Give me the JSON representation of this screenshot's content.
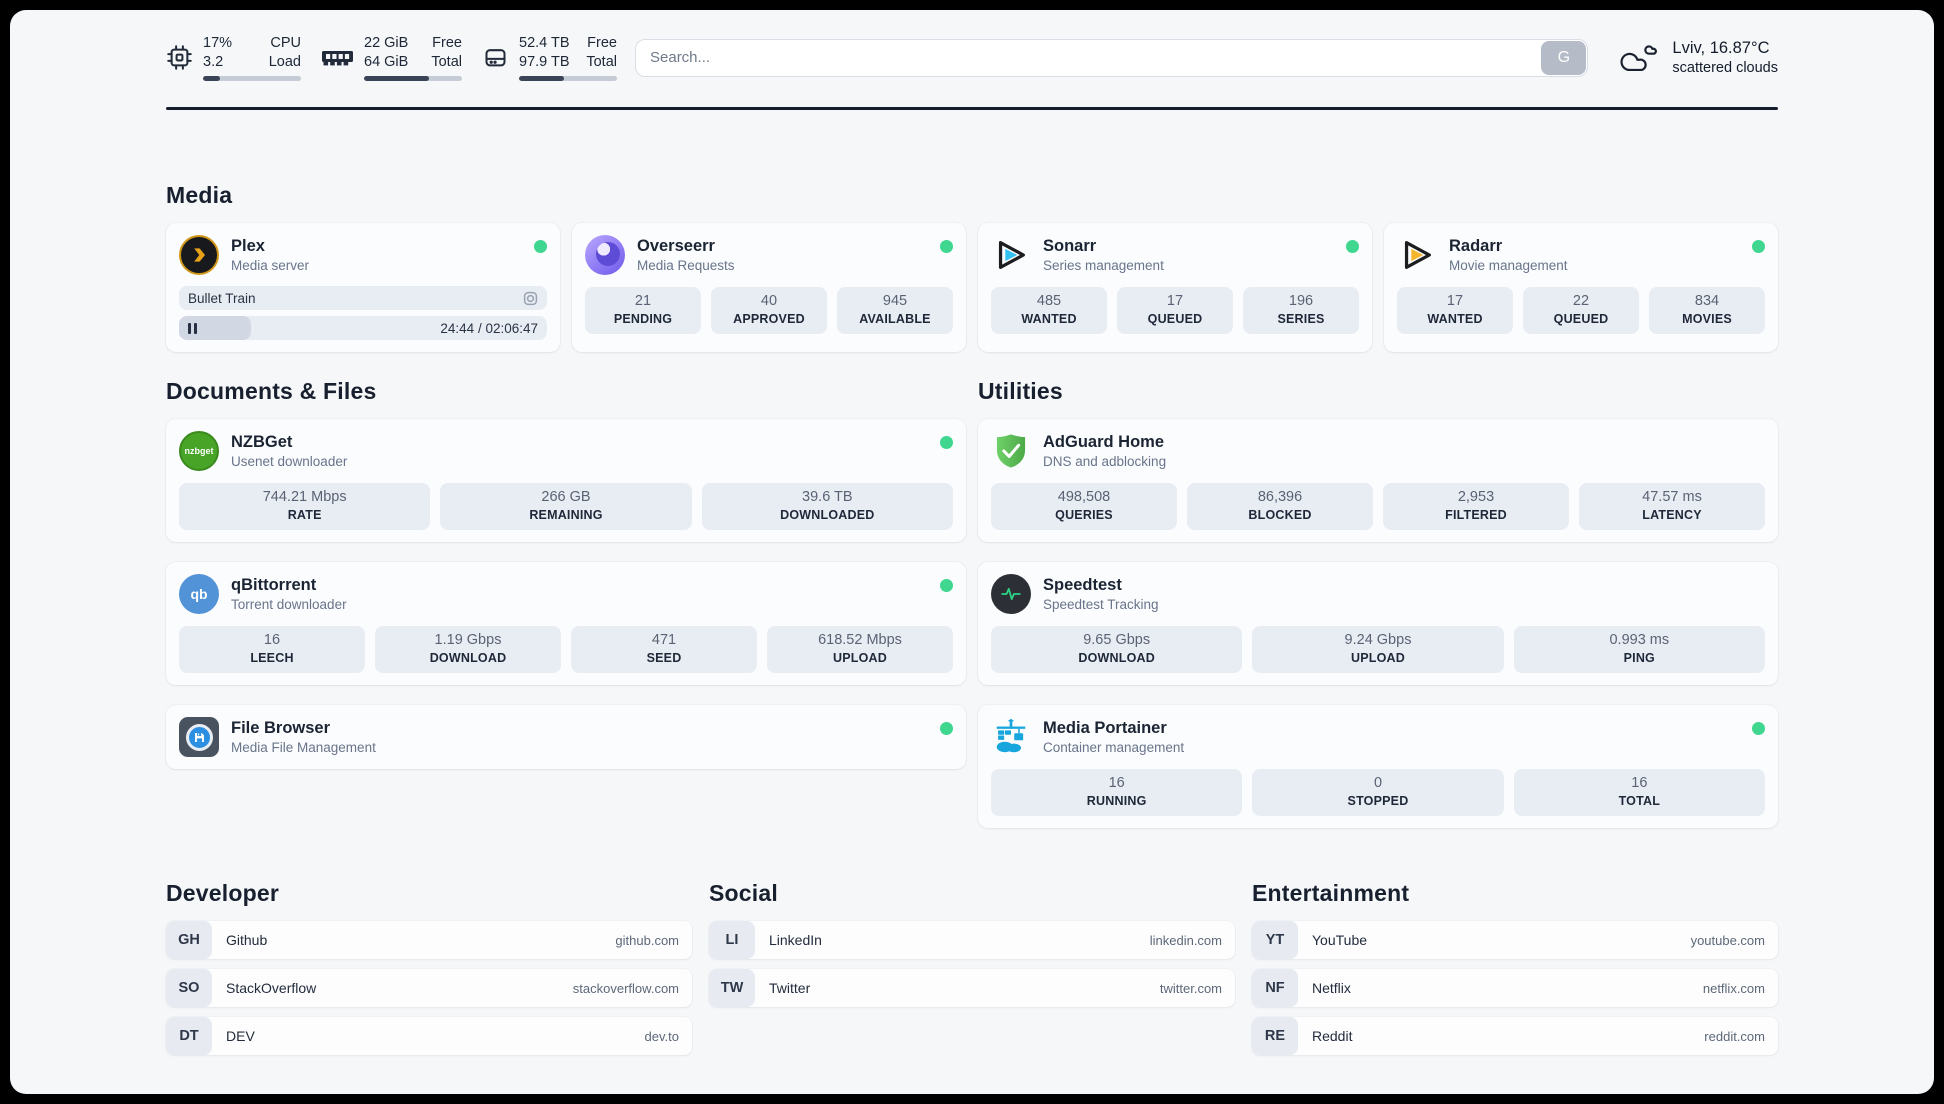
{
  "colors": {
    "status_green": "#3fd68f",
    "accent_dark": "#273043",
    "page_bg": "#f5f7f9",
    "stat_box_bg": "#e8edf4"
  },
  "topbar": {
    "resources": [
      {
        "icon": "cpu-icon",
        "value1": "17%",
        "label1": "CPU",
        "value2": "3.2",
        "label2": "Load",
        "progress": 17
      },
      {
        "icon": "memory-icon",
        "value1": "22 GiB",
        "label1": "Free",
        "value2": "64 GiB",
        "label2": "Total",
        "progress": 66
      },
      {
        "icon": "disk-icon",
        "value1": "52.4 TB",
        "label1": "Free",
        "value2": "97.9 TB",
        "label2": "Total",
        "progress": 46
      }
    ],
    "search": {
      "placeholder": "Search...",
      "button_label": "G"
    },
    "weather": {
      "location_temp": "Lviv, 16.87°C",
      "condition": "scattered clouds"
    }
  },
  "media": {
    "title": "Media",
    "cards": [
      {
        "title": "Plex",
        "subtitle": "Media server",
        "online": true,
        "now_playing": {
          "title": "Bullet Train",
          "time_display": "24:44 / 02:06:47",
          "progress_percent": 19.5
        }
      },
      {
        "title": "Overseerr",
        "subtitle": "Media Requests",
        "online": true,
        "stats": [
          {
            "value": "21",
            "label": "PENDING"
          },
          {
            "value": "40",
            "label": "APPROVED"
          },
          {
            "value": "945",
            "label": "AVAILABLE"
          }
        ]
      },
      {
        "title": "Sonarr",
        "subtitle": "Series management",
        "online": true,
        "stats": [
          {
            "value": "485",
            "label": "WANTED"
          },
          {
            "value": "17",
            "label": "QUEUED"
          },
          {
            "value": "196",
            "label": "SERIES"
          }
        ]
      },
      {
        "title": "Radarr",
        "subtitle": "Movie management",
        "online": true,
        "stats": [
          {
            "value": "17",
            "label": "WANTED"
          },
          {
            "value": "22",
            "label": "QUEUED"
          },
          {
            "value": "834",
            "label": "MOVIES"
          }
        ]
      }
    ]
  },
  "documents": {
    "title": "Documents & Files",
    "cards": [
      {
        "title": "NZBGet",
        "subtitle": "Usenet downloader",
        "online": true,
        "icon_text": "nzbget",
        "stats": [
          {
            "value": "744.21 Mbps",
            "label": "RATE"
          },
          {
            "value": "266 GB",
            "label": "REMAINING"
          },
          {
            "value": "39.6 TB",
            "label": "DOWNLOADED"
          }
        ]
      },
      {
        "title": "qBittorrent",
        "subtitle": "Torrent downloader",
        "online": true,
        "icon_text": "qb",
        "stats": [
          {
            "value": "16",
            "label": "LEECH"
          },
          {
            "value": "1.19 Gbps",
            "label": "DOWNLOAD"
          },
          {
            "value": "471",
            "label": "SEED"
          },
          {
            "value": "618.52 Mbps",
            "label": "UPLOAD"
          }
        ]
      },
      {
        "title": "File Browser",
        "subtitle": "Media File Management",
        "online": true
      }
    ]
  },
  "utilities": {
    "title": "Utilities",
    "cards": [
      {
        "title": "AdGuard Home",
        "subtitle": "DNS and adblocking",
        "stats": [
          {
            "value": "498,508",
            "label": "QUERIES"
          },
          {
            "value": "86,396",
            "label": "BLOCKED"
          },
          {
            "value": "2,953",
            "label": "FILTERED"
          },
          {
            "value": "47.57 ms",
            "label": "LATENCY"
          }
        ]
      },
      {
        "title": "Speedtest",
        "subtitle": "Speedtest Tracking",
        "stats": [
          {
            "value": "9.65 Gbps",
            "label": "DOWNLOAD"
          },
          {
            "value": "9.24 Gbps",
            "label": "UPLOAD"
          },
          {
            "value": "0.993 ms",
            "label": "PING"
          }
        ]
      },
      {
        "title": "Media Portainer",
        "subtitle": "Container management",
        "online": true,
        "stats": [
          {
            "value": "16",
            "label": "RUNNING"
          },
          {
            "value": "0",
            "label": "STOPPED"
          },
          {
            "value": "16",
            "label": "TOTAL"
          }
        ]
      }
    ]
  },
  "bookmarks": {
    "groups": [
      {
        "title": "Developer",
        "items": [
          {
            "abbr": "GH",
            "name": "Github",
            "url": "github.com"
          },
          {
            "abbr": "SO",
            "name": "StackOverflow",
            "url": "stackoverflow.com"
          },
          {
            "abbr": "DT",
            "name": "DEV",
            "url": "dev.to"
          }
        ]
      },
      {
        "title": "Social",
        "items": [
          {
            "abbr": "LI",
            "name": "LinkedIn",
            "url": "linkedin.com"
          },
          {
            "abbr": "TW",
            "name": "Twitter",
            "url": "twitter.com"
          }
        ]
      },
      {
        "title": "Entertainment",
        "items": [
          {
            "abbr": "YT",
            "name": "YouTube",
            "url": "youtube.com"
          },
          {
            "abbr": "NF",
            "name": "Netflix",
            "url": "netflix.com"
          },
          {
            "abbr": "RE",
            "name": "Reddit",
            "url": "reddit.com"
          }
        ]
      }
    ]
  }
}
